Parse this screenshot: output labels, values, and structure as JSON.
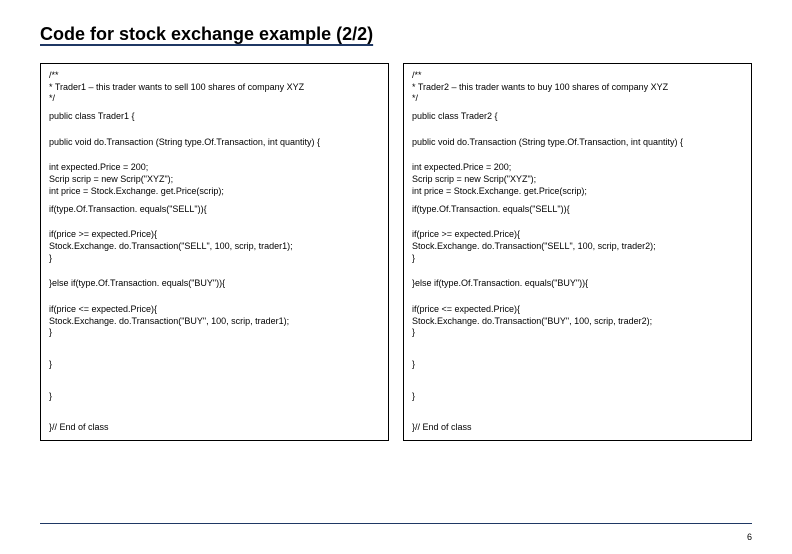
{
  "title": "Code for stock exchange example (2/2)",
  "page_number": "6",
  "colors": {
    "rule": "#1f3864",
    "text": "#000000",
    "border": "#000000",
    "background": "#ffffff"
  },
  "left": {
    "c1": "/**",
    "c2": "* Trader1 – this trader wants to sell 100 shares of company XYZ",
    "c3": "*/",
    "l1": "public class Trader1 {",
    "l2": "public void do.Transaction (String type.Of.Transaction, int quantity) {",
    "l3": "int expected.Price = 200;",
    "l4": "Scrip scrip = new Scrip(\"XYZ\");",
    "l5": "int price = Stock.Exchange. get.Price(scrip);",
    "l6": "if(type.Of.Transaction. equals(\"SELL\")){",
    "l7": " if(price >= expected.Price){",
    "l8": "Stock.Exchange. do.Transaction(\"SELL\", 100, scrip, trader1);",
    "l9": "}",
    "l10": "}else if(type.Of.Transaction. equals(\"BUY\")){",
    "l11": "if(price <= expected.Price){",
    "l12": "Stock.Exchange. do.Transaction(\"BUY\", 100, scrip, trader1);",
    "l13": "}",
    "l14": " }",
    "l15": " }",
    "l16": "}// End of class"
  },
  "right": {
    "c1": "/**",
    "c2": "* Trader2 – this trader wants to buy 100 shares of company XYZ",
    "c3": "*/",
    "l1": "public class Trader2 {",
    "l2": "public void do.Transaction (String type.Of.Transaction, int quantity) {",
    "l3": "int expected.Price = 200;",
    "l4": "Scrip scrip = new Scrip(\"XYZ\");",
    "l5": "int price = Stock.Exchange. get.Price(scrip);",
    "l6": "if(type.Of.Transaction. equals(\"SELL\")){",
    "l7": " if(price >= expected.Price){",
    "l8": "Stock.Exchange. do.Transaction(\"SELL\", 100, scrip, trader2);",
    "l9": "}",
    "l10": "}else if(type.Of.Transaction. equals(\"BUY\")){",
    "l11": "if(price <= expected.Price){",
    "l12": "Stock.Exchange. do.Transaction(\"BUY\", 100, scrip, trader2);",
    "l13": "}",
    "l14": " }",
    "l15": " }",
    "l16": "}// End of class"
  }
}
